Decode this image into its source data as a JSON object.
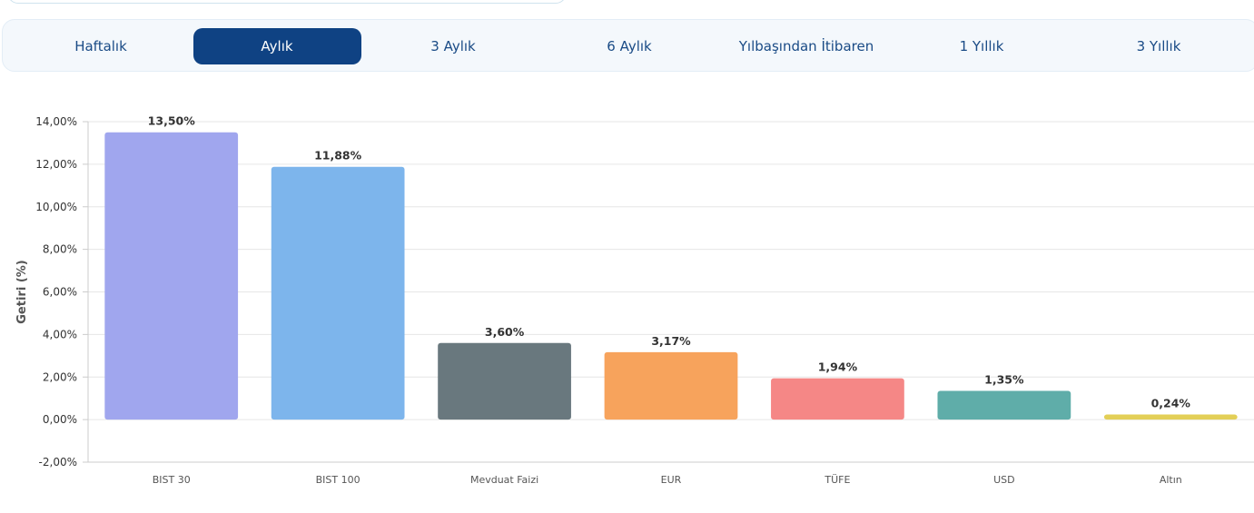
{
  "tabs": [
    {
      "label": "Haftalık",
      "active": false
    },
    {
      "label": "Aylık",
      "active": true
    },
    {
      "label": "3 Aylık",
      "active": false
    },
    {
      "label": "6 Aylık",
      "active": false
    },
    {
      "label": "Yılbaşından İtibaren",
      "active": false
    },
    {
      "label": "1 Yıllık",
      "active": false
    },
    {
      "label": "3 Yıllık",
      "active": false
    }
  ],
  "colors": {
    "tab_active_bg": "#0f4283",
    "tab_text": "#1a4b86"
  },
  "chart_data": {
    "type": "bar",
    "ylabel": "Getiri (%)",
    "xlabel": "",
    "ylim": [
      -2,
      14
    ],
    "yticks": [
      -2,
      0,
      2,
      4,
      6,
      8,
      10,
      12,
      14
    ],
    "ytick_labels": [
      "-2,00%",
      "0,00%",
      "2,00%",
      "4,00%",
      "6,00%",
      "8,00%",
      "10,00%",
      "12,00%",
      "14,00%"
    ],
    "grid": true,
    "categories": [
      "BIST 30",
      "BIST 100",
      "Mevduat Faizi",
      "EUR",
      "TÜFE",
      "USD",
      "Altın"
    ],
    "values": [
      13.5,
      11.88,
      3.6,
      3.17,
      1.94,
      1.35,
      0.24
    ],
    "value_labels": [
      "13,50%",
      "11,88%",
      "3,60%",
      "3,17%",
      "1,94%",
      "1,35%",
      "0,24%"
    ],
    "bar_colors": [
      "#a0a6ee",
      "#7db5ec",
      "#69787e",
      "#f7a35c",
      "#f58786",
      "#5fada9",
      "#e3cf57"
    ]
  }
}
